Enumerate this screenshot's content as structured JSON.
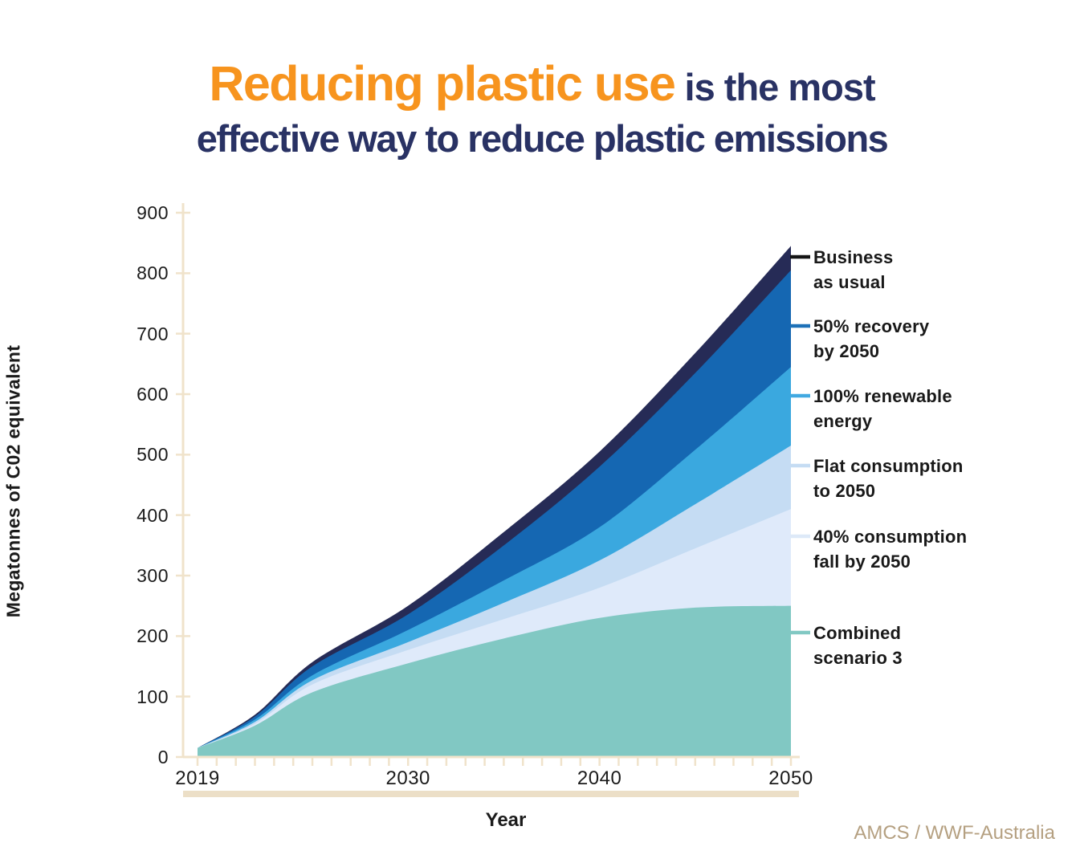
{
  "title": {
    "highlight": "Reducing plastic use",
    "rest_line1": " is the most",
    "line2": "effective way to reduce plastic emissions"
  },
  "axes": {
    "y_label": "Megatonnes of C02 equivalent",
    "x_label": "Year",
    "y_ticks": [
      0,
      100,
      200,
      300,
      400,
      500,
      600,
      700,
      800,
      900
    ],
    "x_tick_labels": [
      2019,
      2030,
      2040,
      2050
    ],
    "minor_x_tick_start": 2019,
    "minor_x_tick_end": 2050
  },
  "legend": {
    "items": [
      {
        "line1": "Business",
        "line2": "as usual",
        "dash_color": "#141414"
      },
      {
        "line1": "50% recovery",
        "line2": "by 2050",
        "dash_color": "#1d71b8"
      },
      {
        "line1": "100% renewable",
        "line2": "energy",
        "dash_color": "#41a9e1"
      },
      {
        "line1": "Flat consumption",
        "line2": "to 2050",
        "dash_color": "#c5dcf3"
      },
      {
        "line1": "40% consumption",
        "line2": "fall by 2050",
        "dash_color": "#dde9f8"
      },
      {
        "line1": "Combined",
        "line2": "scenario 3",
        "dash_color": "#81c8c3"
      }
    ]
  },
  "source_credit": "AMCS / WWF-Australia",
  "colors": {
    "title_highlight": "#f7941e",
    "title_main": "#293264",
    "axis_beige": "#f0e3cb",
    "bottom_bar_beige": "#ecdfc7",
    "text_dark": "#1b1b1b",
    "credit_tan": "#b5a081"
  },
  "chart_data": {
    "type": "area",
    "title": "Reducing plastic use is the most effective way to reduce plastic emissions",
    "xlabel": "Year",
    "ylabel": "Megatonnes of C02 equivalent",
    "xlim": [
      2019,
      2050
    ],
    "ylim": [
      0,
      900
    ],
    "grid": false,
    "legend_position": "right",
    "x": [
      2019,
      2022,
      2025,
      2030,
      2035,
      2040,
      2045,
      2050
    ],
    "series": [
      {
        "name": "Business as usual",
        "color": "#262b56",
        "values": [
          15,
          70,
          157,
          250,
          372,
          505,
          668,
          845
        ]
      },
      {
        "name": "50% recovery by 2050",
        "color": "#1567b2",
        "values": [
          15,
          67,
          150,
          236,
          350,
          480,
          635,
          805
        ]
      },
      {
        "name": "100% renewable energy",
        "color": "#3aa8df",
        "values": [
          15,
          62,
          135,
          210,
          292,
          380,
          508,
          645
        ]
      },
      {
        "name": "Flat consumption to 2050",
        "color": "#c5dcf3",
        "values": [
          15,
          58,
          127,
          190,
          255,
          325,
          418,
          515
        ]
      },
      {
        "name": "40% consumption fall by 2050",
        "color": "#dfeafa",
        "values": [
          15,
          55,
          120,
          177,
          228,
          280,
          345,
          410
        ]
      },
      {
        "name": "Combined scenario 3",
        "color": "#81c8c3",
        "values": [
          15,
          52,
          107,
          155,
          196,
          230,
          247,
          250
        ]
      }
    ]
  }
}
